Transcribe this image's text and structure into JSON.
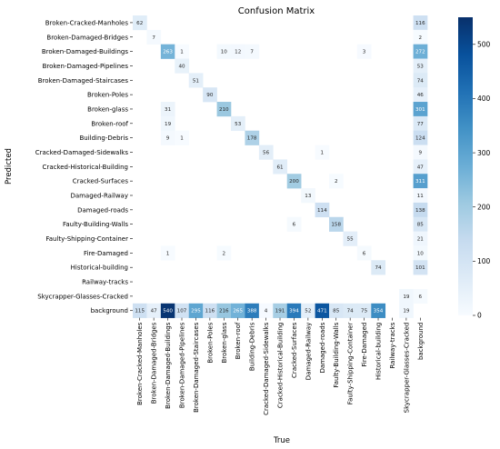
{
  "chart_data": {
    "type": "heatmap",
    "title": "Confusion Matrix",
    "xlabel": "True",
    "ylabel": "Predicted",
    "labels": [
      "Broken-Cracked-Manholes",
      "Broken-Damaged-Bridges",
      "Broken-Damaged-Buildings",
      "Broken-Damaged-Pipelines",
      "Broken-Damaged-Staircases",
      "Broken-Poles",
      "Broken-glass",
      "Broken-roof",
      "Building-Debris",
      "Cracked-Damaged-Sidewalks",
      "Cracked-Historical-Building",
      "Cracked-Surfaces",
      "Damaged-Railway",
      "Damaged-roads",
      "Faulty-Building-Walls",
      "Faulty-Shipping-Container",
      "Fire-Damaged",
      "Historical-building",
      "Railway-tracks",
      "Skycrapper-Glasses-Cracked",
      "background"
    ],
    "cells": [
      [
        0,
        0,
        62
      ],
      [
        0,
        20,
        116
      ],
      [
        1,
        1,
        7
      ],
      [
        1,
        20,
        2
      ],
      [
        2,
        2,
        263
      ],
      [
        2,
        3,
        1
      ],
      [
        2,
        6,
        10
      ],
      [
        2,
        7,
        12
      ],
      [
        2,
        8,
        7
      ],
      [
        2,
        16,
        3
      ],
      [
        2,
        20,
        272
      ],
      [
        3,
        3,
        40
      ],
      [
        3,
        20,
        53
      ],
      [
        4,
        4,
        51
      ],
      [
        4,
        20,
        74
      ],
      [
        5,
        5,
        90
      ],
      [
        5,
        20,
        46
      ],
      [
        6,
        2,
        31
      ],
      [
        6,
        6,
        210
      ],
      [
        6,
        20,
        301
      ],
      [
        7,
        2,
        19
      ],
      [
        7,
        7,
        53
      ],
      [
        7,
        20,
        77
      ],
      [
        8,
        2,
        9
      ],
      [
        8,
        3,
        1
      ],
      [
        8,
        8,
        178
      ],
      [
        8,
        20,
        124
      ],
      [
        9,
        9,
        56
      ],
      [
        9,
        13,
        1
      ],
      [
        9,
        20,
        9
      ],
      [
        10,
        10,
        61
      ],
      [
        10,
        20,
        47
      ],
      [
        11,
        11,
        200
      ],
      [
        11,
        14,
        2
      ],
      [
        11,
        20,
        311
      ],
      [
        12,
        12,
        13
      ],
      [
        12,
        20,
        11
      ],
      [
        13,
        13,
        114
      ],
      [
        13,
        20,
        138
      ],
      [
        14,
        11,
        6
      ],
      [
        14,
        14,
        158
      ],
      [
        14,
        20,
        85
      ],
      [
        15,
        15,
        55
      ],
      [
        15,
        20,
        21
      ],
      [
        16,
        2,
        1
      ],
      [
        16,
        6,
        2
      ],
      [
        16,
        16,
        6
      ],
      [
        16,
        20,
        10
      ],
      [
        17,
        17,
        74
      ],
      [
        17,
        20,
        101
      ],
      [
        19,
        19,
        19
      ],
      [
        19,
        20,
        6
      ],
      [
        20,
        0,
        115
      ],
      [
        20,
        1,
        47
      ],
      [
        20,
        2,
        540
      ],
      [
        20,
        3,
        107
      ],
      [
        20,
        4,
        295
      ],
      [
        20,
        5,
        116
      ],
      [
        20,
        6,
        216
      ],
      [
        20,
        7,
        265
      ],
      [
        20,
        8,
        388
      ],
      [
        20,
        9,
        4
      ],
      [
        20,
        10,
        191
      ],
      [
        20,
        11,
        394
      ],
      [
        20,
        12,
        52
      ],
      [
        20,
        13,
        471
      ],
      [
        20,
        14,
        85
      ],
      [
        20,
        15,
        74
      ],
      [
        20,
        16,
        75
      ],
      [
        20,
        17,
        354
      ],
      [
        20,
        19,
        19
      ]
    ],
    "color_range": [
      0,
      550
    ],
    "colorbar_ticks": [
      0,
      100,
      200,
      300,
      400,
      500
    ],
    "colormap": "Blues",
    "color_low": "#f7fbff",
    "color_high": "#08306b"
  }
}
